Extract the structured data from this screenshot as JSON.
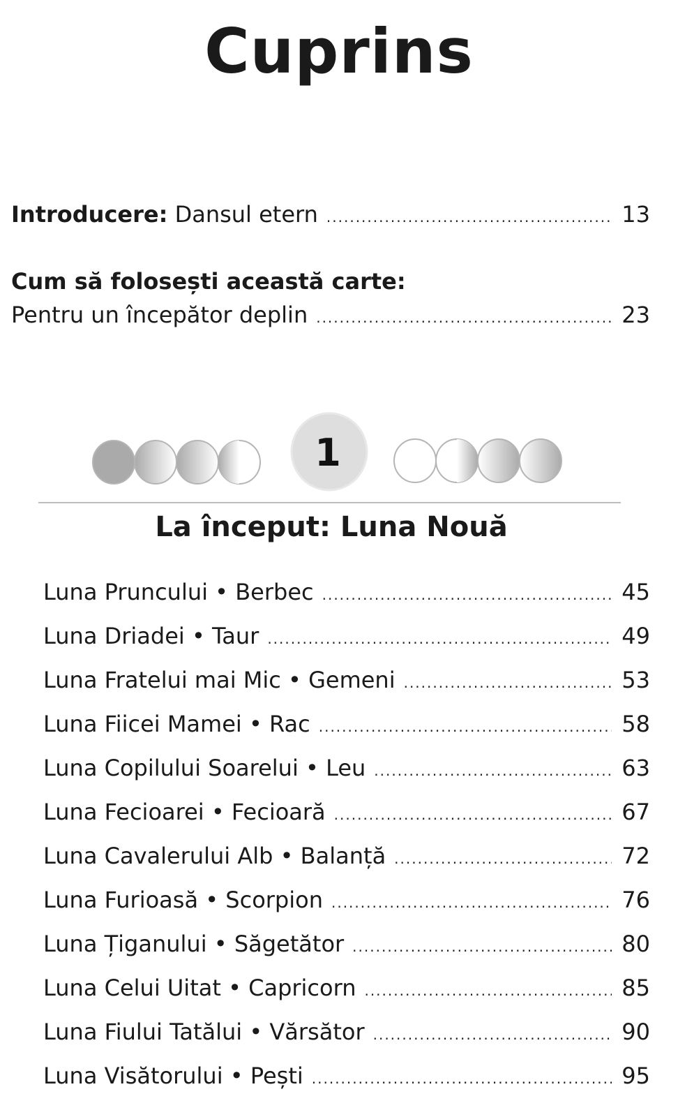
{
  "title": "Cuprins",
  "intro": {
    "label_bold": "Introducere:",
    "label": " Dansul etern",
    "page": "13"
  },
  "how_to": {
    "heading": "Cum să folosești această carte:",
    "label": "Pentru un începător deplin",
    "page": "23"
  },
  "chapter": {
    "number": "1",
    "title": "La început: Luna Nouă",
    "entries": [
      {
        "label": "Luna Pruncului • Berbec",
        "page": "45"
      },
      {
        "label": "Luna Driadei • Taur",
        "page": "49"
      },
      {
        "label": "Luna Fratelui mai Mic • Gemeni",
        "page": "53"
      },
      {
        "label": "Luna Fiicei Mamei • Rac",
        "page": "58"
      },
      {
        "label": "Luna Copilului Soarelui • Leu",
        "page": "63"
      },
      {
        "label": "Luna Fecioarei • Fecioară",
        "page": "67"
      },
      {
        "label": "Luna Cavalerului Alb • Balanță",
        "page": "72"
      },
      {
        "label": "Luna Furioasă • Scorpion",
        "page": "76"
      },
      {
        "label": "Luna Țiganului • Săgetător",
        "page": "80"
      },
      {
        "label": "Luna Celui Uitat • Capricorn",
        "page": "85"
      },
      {
        "label": "Luna Fiului Tatălui • Vărsător",
        "page": "90"
      },
      {
        "label": "Luna Visătorului • Pești",
        "page": "95"
      }
    ]
  },
  "colors": {
    "moon_gray": "#aaaaaa",
    "badge_bg": "#dedede",
    "rule": "#bdbdbd"
  }
}
